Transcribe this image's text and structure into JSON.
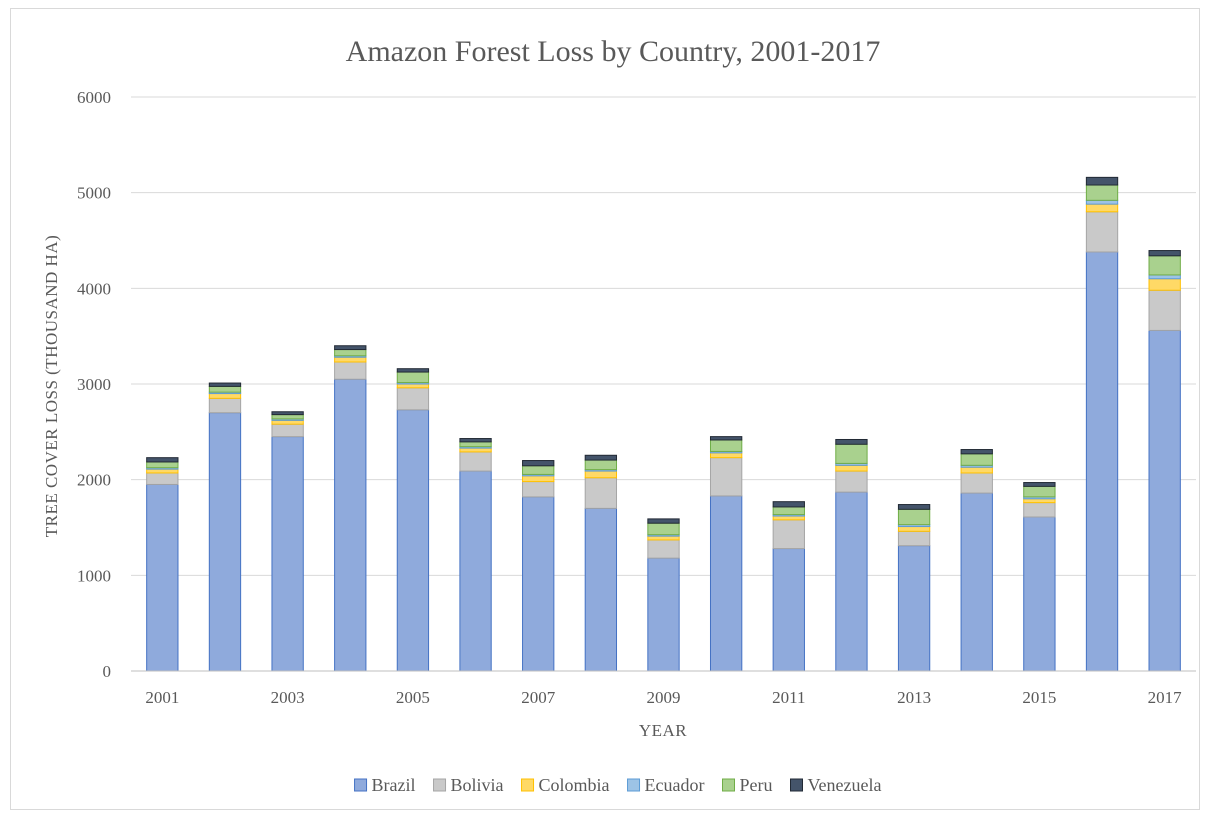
{
  "chart_data": {
    "type": "bar",
    "stacked": true,
    "title": "Amazon Forest Loss by Country, 2001-2017",
    "xlabel": "YEAR",
    "ylabel": "TREE COVER LOSS (THOUSAND HA)",
    "ylim": [
      0,
      6000
    ],
    "yticks": [
      "0",
      "1000",
      "2000",
      "3000",
      "4000",
      "5000",
      "6000"
    ],
    "grid": true,
    "legend_position": "bottom",
    "categories": [
      "2001",
      "2002",
      "2003",
      "2004",
      "2005",
      "2006",
      "2007",
      "2008",
      "2009",
      "2010",
      "2011",
      "2012",
      "2013",
      "2014",
      "2015",
      "2016",
      "2017"
    ],
    "x_tick_labels": [
      "2001",
      "",
      "2003",
      "",
      "2005",
      "",
      "2007",
      "",
      "2009",
      "",
      "2011",
      "",
      "2013",
      "",
      "2015",
      "",
      "2017"
    ],
    "series": [
      {
        "name": "Brazil",
        "color": "#8faadc",
        "stroke": "#4472c4",
        "values": [
          1950,
          2700,
          2450,
          3050,
          2730,
          2090,
          1820,
          1700,
          1180,
          1830,
          1280,
          1870,
          1310,
          1860,
          1610,
          4380,
          3560
        ]
      },
      {
        "name": "Bolivia",
        "color": "#c9c9c9",
        "stroke": "#a5a5a5",
        "values": [
          120,
          150,
          130,
          180,
          230,
          200,
          160,
          320,
          190,
          400,
          300,
          220,
          150,
          210,
          150,
          420,
          420
        ]
      },
      {
        "name": "Colombia",
        "color": "#ffd966",
        "stroke": "#ffc000",
        "values": [
          40,
          50,
          40,
          50,
          40,
          40,
          60,
          70,
          40,
          50,
          40,
          60,
          50,
          60,
          40,
          80,
          120
        ]
      },
      {
        "name": "Ecuador",
        "color": "#9dc3e6",
        "stroke": "#5b9bd5",
        "values": [
          15,
          15,
          15,
          15,
          15,
          15,
          15,
          15,
          15,
          15,
          15,
          20,
          20,
          20,
          20,
          40,
          40
        ]
      },
      {
        "name": "Peru",
        "color": "#a9d18e",
        "stroke": "#70ad47",
        "values": [
          60,
          60,
          45,
          65,
          110,
          50,
          90,
          100,
          120,
          120,
          80,
          200,
          160,
          120,
          110,
          160,
          200
        ]
      },
      {
        "name": "Venezuela",
        "color": "#44546a",
        "stroke": "#222a35",
        "values": [
          45,
          35,
          30,
          40,
          35,
          35,
          55,
          50,
          45,
          35,
          55,
          50,
          50,
          45,
          40,
          80,
          55
        ]
      }
    ]
  }
}
